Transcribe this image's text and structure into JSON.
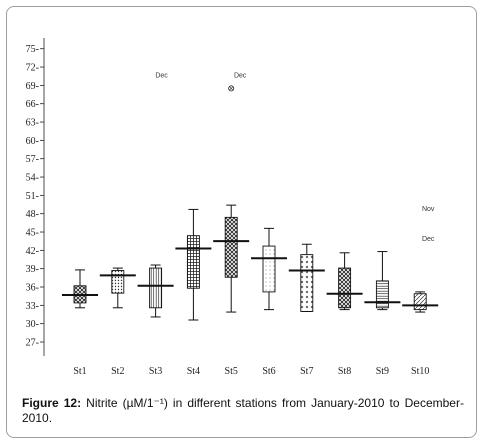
{
  "chart_data": {
    "type": "boxplot",
    "categories": [
      "St1",
      "St2",
      "St3",
      "St4",
      "St5",
      "St6",
      "St7",
      "St8",
      "St9",
      "St10"
    ],
    "y_ticks": [
      27,
      30,
      33,
      36,
      39,
      42,
      45,
      48,
      51,
      54,
      57,
      60,
      63,
      66,
      69,
      72,
      75
    ],
    "y_tick_labels": [
      "27-",
      "30-",
      "33-",
      "36-",
      "39-",
      "42-",
      "45-",
      "48-",
      "51-",
      "54-",
      "57-",
      "60-",
      "63-",
      "66-",
      "69-",
      "72-",
      "75-"
    ],
    "ylim": [
      24.5,
      76
    ],
    "boxes": [
      {
        "name": "St1",
        "whisker_low": 32.6,
        "q1": 33.4,
        "q3": 36.2,
        "whisker_high": 38.8,
        "median": 34.7,
        "fill": "crosshatch"
      },
      {
        "name": "St2",
        "whisker_low": 32.6,
        "q1": 35.0,
        "q3": 38.7,
        "whisker_high": 39.1,
        "median": 37.9,
        "fill": "dots"
      },
      {
        "name": "St3",
        "whisker_low": 31.1,
        "q1": 32.6,
        "q3": 39.1,
        "whisker_high": 39.6,
        "median": 36.2,
        "fill": "vlines"
      },
      {
        "name": "St4",
        "whisker_low": 30.6,
        "q1": 35.8,
        "q3": 44.4,
        "whisker_high": 48.7,
        "median": 42.3,
        "fill": "grid"
      },
      {
        "name": "St5",
        "whisker_low": 31.9,
        "q1": 37.6,
        "q3": 47.4,
        "whisker_high": 49.4,
        "median": 43.5,
        "fill": "crosshatch"
      },
      {
        "name": "St6",
        "whisker_low": 32.3,
        "q1": 35.2,
        "q3": 42.7,
        "whisker_high": 45.6,
        "median": 40.7,
        "fill": "finedots"
      },
      {
        "name": "St7",
        "whisker_low": 32.0,
        "q1": 32.0,
        "q3": 41.3,
        "whisker_high": 43.0,
        "median": 38.7,
        "fill": "crosses"
      },
      {
        "name": "St8",
        "whisker_low": 32.3,
        "q1": 32.6,
        "q3": 39.1,
        "whisker_high": 41.6,
        "median": 34.9,
        "fill": "crosshatch"
      },
      {
        "name": "St9",
        "whisker_low": 32.3,
        "q1": 32.6,
        "q3": 37.0,
        "whisker_high": 41.8,
        "median": 33.5,
        "fill": "hlines"
      },
      {
        "name": "St10",
        "whisker_low": 31.9,
        "q1": 32.3,
        "q3": 34.9,
        "whisker_high": 35.2,
        "median": 33.0,
        "fill": "diag"
      }
    ],
    "outliers": [
      {
        "category": "St5",
        "y": 68.5
      }
    ],
    "annotations": [
      {
        "category": "St3",
        "y": 70.3,
        "text": "Dec"
      },
      {
        "category": "St5",
        "y": 70.3,
        "text": "Dec"
      },
      {
        "category": "St10",
        "y": 48.4,
        "text": "Nov"
      },
      {
        "category": "St10",
        "y": 43.5,
        "text": "Dec"
      }
    ],
    "colors": {
      "line": "#111111",
      "fill": "#ffffff"
    }
  },
  "caption": {
    "label": "Figure 12:",
    "text": " Nitrite (µM/1⁻¹) in different stations from January-2010 to December-2010."
  }
}
